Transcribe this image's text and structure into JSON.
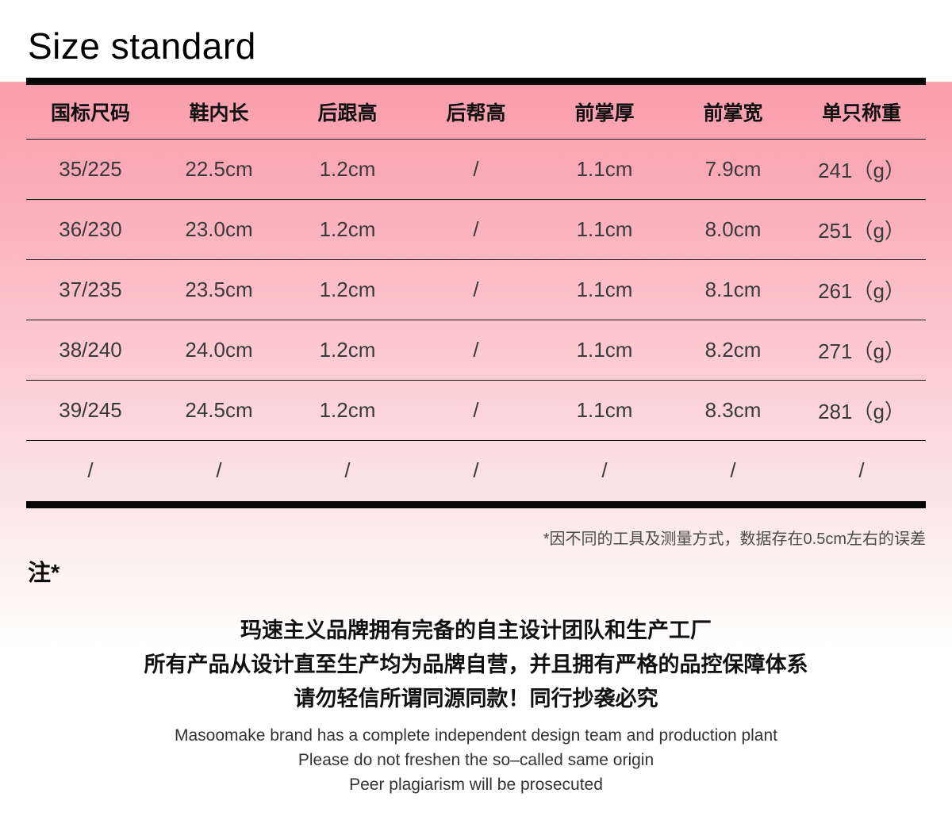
{
  "page": {
    "title": "Size standard"
  },
  "table": {
    "columns": [
      "国标尺码",
      "鞋内长",
      "后跟高",
      "后帮高",
      "前掌厚",
      "前掌宽",
      "单只称重"
    ],
    "rows": [
      [
        "35/225",
        "22.5cm",
        "1.2cm",
        "/",
        "1.1cm",
        "7.9cm",
        "241（g）"
      ],
      [
        "36/230",
        "23.0cm",
        "1.2cm",
        "/",
        "1.1cm",
        "8.0cm",
        "251（g）"
      ],
      [
        "37/235",
        "23.5cm",
        "1.2cm",
        "/",
        "1.1cm",
        "8.1cm",
        "261（g）"
      ],
      [
        "38/240",
        "24.0cm",
        "1.2cm",
        "/",
        "1.1cm",
        "8.2cm",
        "271（g）"
      ],
      [
        "39/245",
        "24.5cm",
        "1.2cm",
        "/",
        "1.1cm",
        "8.3cm",
        "281（g）"
      ],
      [
        "/",
        "/",
        "/",
        "/",
        "/",
        "/",
        "/"
      ]
    ]
  },
  "notes": {
    "measure_note": "*因不同的工具及测量方式，数据存在0.5cm左右的误差",
    "note_label": "注*"
  },
  "disclaimer": {
    "zh_lines": [
      "玛速主义品牌拥有完备的自主设计团队和生产工厂",
      "所有产品从设计直至生产均为品牌自营，并且拥有严格的品控保障体系",
      "请勿轻信所谓同源同款！同行抄袭必究"
    ],
    "en_lines": [
      "Masoomake brand has a complete independent design team and production plant",
      "Please do not freshen the so–called same origin",
      "Peer plagiarism will be prosecuted"
    ]
  },
  "colors": {
    "gradient_top_pink": "#f99dac",
    "gradient_bottom_fade": "#ffffff",
    "table_bar_black": "#070707",
    "header_text": "#111111",
    "data_text": "#3a3a3a",
    "note_text": "#4a4a4a"
  }
}
